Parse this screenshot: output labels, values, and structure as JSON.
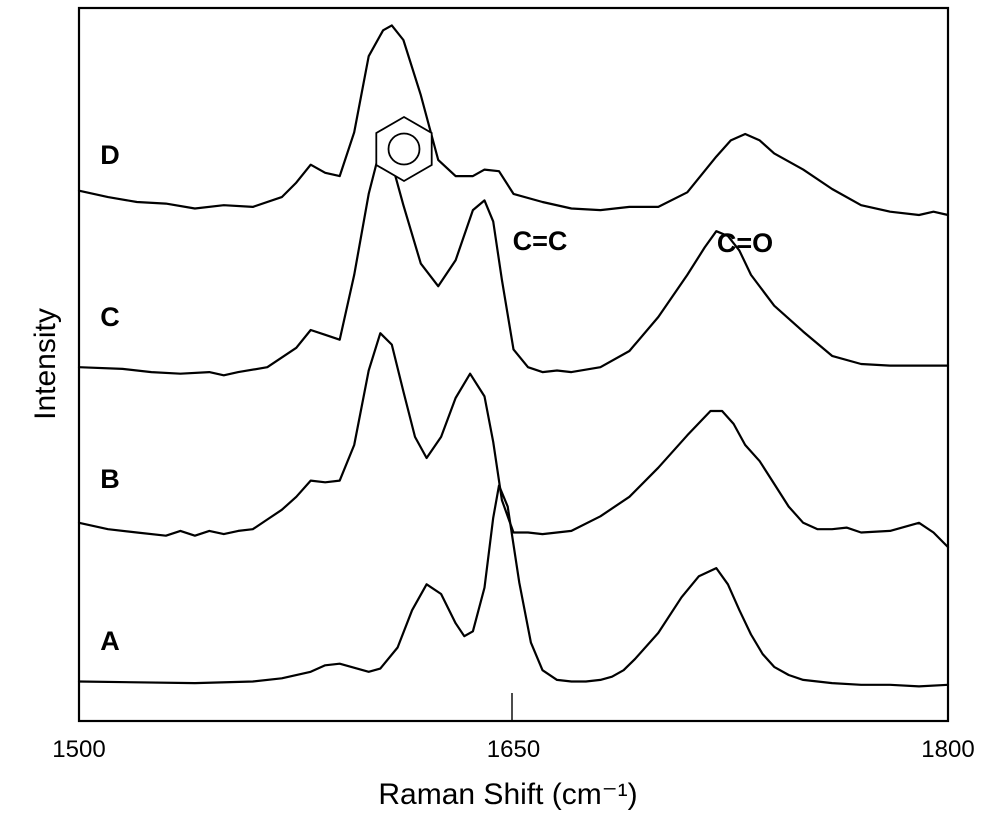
{
  "chart_data": {
    "type": "line",
    "title": "",
    "xlabel": "Raman Shift (cm⁻¹)",
    "ylabel": "Intensity",
    "xlim": [
      1500,
      1800
    ],
    "ylim": [
      0,
      5.2
    ],
    "x_ticks": [
      1500,
      1650,
      1800
    ],
    "x_tick_labels": [
      "1500",
      "1650",
      "1800"
    ],
    "grid": false,
    "legend": "none",
    "annotations": [
      {
        "text": "C=C",
        "x": 1641,
        "y": 3.09
      },
      {
        "text": "C=O",
        "x": 1722,
        "y": 3.07
      },
      {
        "text": "benzene-ring",
        "x": 1611,
        "y": 3.72
      }
    ],
    "marker_line_x": 1650,
    "series": [
      {
        "name": "A",
        "baseline": 0,
        "x": [
          1500,
          1540,
          1560,
          1570,
          1580,
          1585,
          1590,
          1594,
          1600,
          1604,
          1610,
          1615,
          1620,
          1625,
          1630,
          1633,
          1636,
          1640,
          1643,
          1645,
          1648,
          1652,
          1656,
          1660,
          1665,
          1670,
          1675,
          1680,
          1684,
          1688,
          1692,
          1700,
          1708,
          1714,
          1720,
          1724,
          1728,
          1732,
          1736,
          1740,
          1745,
          1750,
          1760,
          1770,
          1780,
          1790,
          1800
        ],
        "y": [
          0.04,
          0.03,
          0.04,
          0.06,
          0.1,
          0.14,
          0.15,
          0.13,
          0.1,
          0.12,
          0.25,
          0.48,
          0.64,
          0.58,
          0.4,
          0.32,
          0.35,
          0.62,
          1.05,
          1.25,
          1.12,
          0.65,
          0.28,
          0.11,
          0.05,
          0.04,
          0.04,
          0.05,
          0.07,
          0.11,
          0.18,
          0.34,
          0.56,
          0.69,
          0.74,
          0.64,
          0.48,
          0.33,
          0.21,
          0.13,
          0.08,
          0.05,
          0.03,
          0.02,
          0.02,
          0.01,
          0.02
        ]
      },
      {
        "name": "B",
        "baseline": 1,
        "x": [
          1500,
          1510,
          1520,
          1530,
          1535,
          1540,
          1545,
          1550,
          1555,
          1560,
          1565,
          1570,
          1575,
          1580,
          1585,
          1590,
          1595,
          1600,
          1604,
          1608,
          1612,
          1616,
          1620,
          1625,
          1630,
          1635,
          1640,
          1643,
          1646,
          1650,
          1655,
          1660,
          1665,
          1670,
          1680,
          1690,
          1700,
          1710,
          1718,
          1722,
          1726,
          1730,
          1735,
          1740,
          1745,
          1750,
          1755,
          1760,
          1765,
          1770,
          1780,
          1790,
          1795,
          1800
        ],
        "y": [
          0.02,
          -0.02,
          -0.04,
          -0.06,
          -0.03,
          -0.06,
          -0.03,
          -0.05,
          -0.03,
          -0.02,
          0.04,
          0.1,
          0.18,
          0.28,
          0.27,
          0.28,
          0.5,
          0.96,
          1.19,
          1.12,
          0.83,
          0.55,
          0.42,
          0.55,
          0.79,
          0.94,
          0.8,
          0.52,
          0.16,
          -0.04,
          -0.04,
          -0.05,
          -0.04,
          -0.03,
          0.06,
          0.18,
          0.36,
          0.56,
          0.71,
          0.71,
          0.63,
          0.5,
          0.4,
          0.26,
          0.12,
          0.02,
          -0.02,
          -0.02,
          -0.01,
          -0.04,
          -0.03,
          0.02,
          -0.04,
          -0.13
        ]
      },
      {
        "name": "C",
        "baseline": 2,
        "x": [
          1500,
          1515,
          1525,
          1535,
          1545,
          1550,
          1555,
          1565,
          1575,
          1580,
          1585,
          1590,
          1595,
          1600,
          1603,
          1605,
          1608,
          1612,
          1618,
          1624,
          1630,
          1636,
          1640,
          1643,
          1646,
          1650,
          1655,
          1660,
          1665,
          1670,
          1680,
          1690,
          1700,
          1710,
          1716,
          1720,
          1724,
          1728,
          1732,
          1740,
          1750,
          1760,
          1770,
          1780,
          1790,
          1800
        ],
        "y": [
          -0.02,
          -0.03,
          -0.05,
          -0.06,
          -0.05,
          -0.07,
          -0.05,
          -0.02,
          0.1,
          0.21,
          0.18,
          0.15,
          0.55,
          1.05,
          1.26,
          1.29,
          1.24,
          0.98,
          0.62,
          0.48,
          0.64,
          0.95,
          1.01,
          0.88,
          0.52,
          0.09,
          -0.02,
          -0.05,
          -0.04,
          -0.05,
          -0.02,
          0.08,
          0.29,
          0.55,
          0.72,
          0.82,
          0.79,
          0.7,
          0.55,
          0.36,
          0.2,
          0.05,
          0.0,
          -0.01,
          -0.01,
          -0.01
        ]
      },
      {
        "name": "D",
        "baseline": 3,
        "x": [
          1500,
          1510,
          1520,
          1530,
          1540,
          1550,
          1560,
          1570,
          1575,
          1580,
          1585,
          1590,
          1595,
          1600,
          1605,
          1608,
          1612,
          1618,
          1624,
          1630,
          1636,
          1640,
          1645,
          1650,
          1660,
          1670,
          1680,
          1690,
          1700,
          1710,
          1720,
          1725,
          1730,
          1735,
          1740,
          1750,
          1760,
          1770,
          1780,
          1790,
          1795,
          1800
        ],
        "y": [
          0.07,
          0.03,
          0.0,
          -0.01,
          -0.04,
          -0.02,
          -0.03,
          0.03,
          0.12,
          0.23,
          0.18,
          0.16,
          0.43,
          0.9,
          1.06,
          1.09,
          1.0,
          0.66,
          0.26,
          0.16,
          0.16,
          0.2,
          0.19,
          0.05,
          0.0,
          -0.04,
          -0.05,
          -0.03,
          -0.03,
          0.06,
          0.28,
          0.38,
          0.42,
          0.38,
          0.3,
          0.2,
          0.08,
          -0.02,
          -0.06,
          -0.08,
          -0.06,
          -0.08
        ]
      }
    ]
  }
}
